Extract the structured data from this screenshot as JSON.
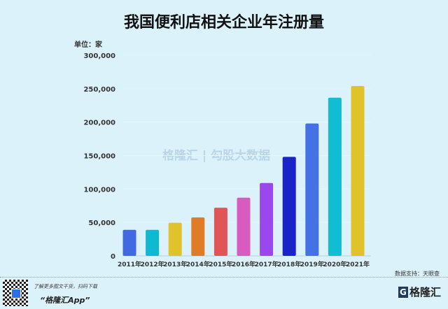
{
  "chart_data": {
    "type": "bar",
    "title": "我国便利店相关企业年注册量",
    "unit_label": "单位：家",
    "xlabel": "",
    "ylabel": "",
    "ylim": [
      0,
      300000
    ],
    "yticks": [
      0,
      50000,
      100000,
      150000,
      200000,
      250000,
      300000
    ],
    "ytick_labels": [
      "0",
      "50,000",
      "100,000",
      "150,000",
      "200,000",
      "250,000",
      "300,000"
    ],
    "categories": [
      "2011年",
      "2012年",
      "2013年",
      "2014年",
      "2015年",
      "2016年",
      "2017年",
      "2018年",
      "2019年",
      "2020年",
      "2021年"
    ],
    "values": [
      39000,
      39000,
      49500,
      57500,
      72000,
      87000,
      109000,
      148000,
      198000,
      236500,
      254000
    ],
    "colors": [
      "#4169e1",
      "#10b8d0",
      "#e0c22a",
      "#e07b26",
      "#e05555",
      "#d85cc0",
      "#9a48ee",
      "#1a23c8",
      "#4472e6",
      "#12bcd2",
      "#e0c22a"
    ],
    "grid": true,
    "legend": "none"
  },
  "watermark": "格隆汇 | 勾股大数据",
  "source": "数据支持：天眼查",
  "footer": {
    "promo_line": "了解更多图文干货，扫码下载",
    "app_name": "“格隆汇App”",
    "logo_text": "格隆汇"
  }
}
